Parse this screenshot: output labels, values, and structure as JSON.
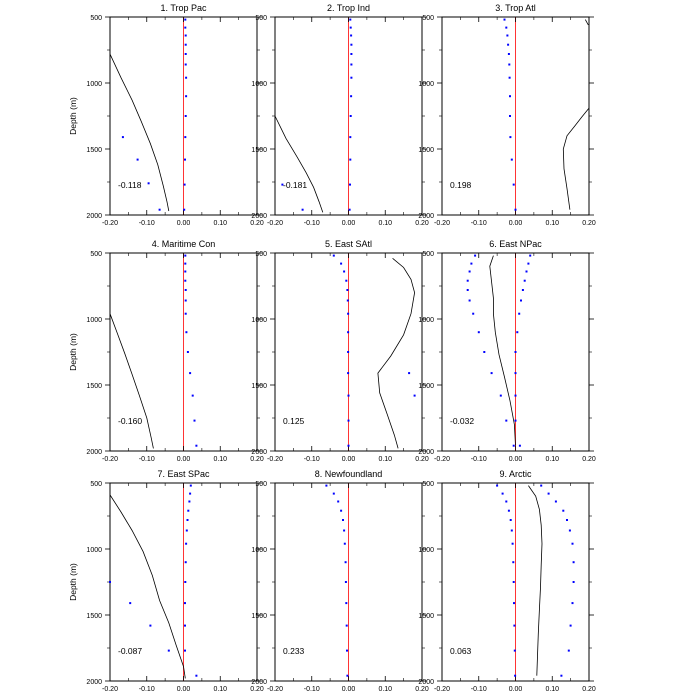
{
  "chart_data": {
    "type": "line",
    "ylabel": "Depth (m)",
    "xlim": [
      -0.2,
      0.2
    ],
    "ylim": [
      500,
      2000
    ],
    "y_inverted": true,
    "x_ticks": [
      "-0.20",
      "-0.10",
      "0.00",
      "0.10",
      "0.20"
    ],
    "y_ticks": [
      "500",
      "1000",
      "1500",
      "2000"
    ],
    "colors": {
      "zero_line": "#ff0000",
      "dots": "#0000ff",
      "curve": "#000000"
    },
    "panels": [
      {
        "title": "1. Trop Pac",
        "value": "-0.118",
        "curve": [
          [
            -0.2,
            780
          ],
          [
            -0.17,
            960
          ],
          [
            -0.14,
            1130
          ],
          [
            -0.115,
            1290
          ],
          [
            -0.09,
            1460
          ],
          [
            -0.07,
            1620
          ],
          [
            -0.055,
            1780
          ],
          [
            -0.045,
            1900
          ],
          [
            -0.04,
            1970
          ]
        ],
        "dots_near_zero": [
          [
            0.005,
            520
          ],
          [
            0.005,
            580
          ],
          [
            0.006,
            640
          ],
          [
            0.006,
            710
          ],
          [
            0.006,
            780
          ],
          [
            0.006,
            860
          ],
          [
            0.007,
            960
          ],
          [
            0.007,
            1100
          ],
          [
            0.006,
            1250
          ],
          [
            0.005,
            1410
          ],
          [
            0.004,
            1580
          ],
          [
            0.003,
            1770
          ],
          [
            0.002,
            1960
          ]
        ],
        "dots_scattered": [
          [
            -0.165,
            1410
          ],
          [
            -0.125,
            1580
          ],
          [
            -0.095,
            1760
          ],
          [
            -0.065,
            1960
          ]
        ]
      },
      {
        "title": "2. Trop Ind",
        "value": "-0.181",
        "curve": [
          [
            -0.2,
            1250
          ],
          [
            -0.17,
            1420
          ],
          [
            -0.14,
            1560
          ],
          [
            -0.115,
            1680
          ],
          [
            -0.095,
            1790
          ],
          [
            -0.08,
            1900
          ],
          [
            -0.07,
            1980
          ]
        ],
        "dots_near_zero": [
          [
            0.005,
            520
          ],
          [
            0.006,
            580
          ],
          [
            0.007,
            640
          ],
          [
            0.008,
            710
          ],
          [
            0.008,
            780
          ],
          [
            0.008,
            860
          ],
          [
            0.008,
            960
          ],
          [
            0.007,
            1100
          ],
          [
            0.006,
            1250
          ],
          [
            0.005,
            1410
          ],
          [
            0.005,
            1580
          ],
          [
            0.004,
            1770
          ],
          [
            0.003,
            1960
          ]
        ],
        "dots_scattered": [
          [
            -0.18,
            1770
          ],
          [
            -0.125,
            1960
          ]
        ]
      },
      {
        "title": "3. Trop Atl",
        "value": "0.198",
        "curve": [
          [
            0.2,
            1190
          ],
          [
            0.18,
            1260
          ],
          [
            0.16,
            1330
          ],
          [
            0.14,
            1400
          ],
          [
            0.13,
            1500
          ],
          [
            0.132,
            1650
          ],
          [
            0.14,
            1800
          ],
          [
            0.148,
            1960
          ]
        ],
        "curve2": [
          [
            0.19,
            520
          ],
          [
            0.198,
            560
          ]
        ],
        "dots_near_zero": [
          [
            -0.03,
            520
          ],
          [
            -0.025,
            580
          ],
          [
            -0.022,
            640
          ],
          [
            -0.02,
            710
          ],
          [
            -0.018,
            780
          ],
          [
            -0.017,
            860
          ],
          [
            -0.016,
            960
          ],
          [
            -0.015,
            1100
          ],
          [
            -0.015,
            1250
          ],
          [
            -0.014,
            1410
          ],
          [
            -0.01,
            1580
          ],
          [
            -0.005,
            1770
          ],
          [
            0.0,
            1960
          ]
        ],
        "dots_scattered": []
      },
      {
        "title": "4. Maritime Con",
        "value": "-0.160",
        "curve": [
          [
            -0.2,
            960
          ],
          [
            -0.18,
            1110
          ],
          [
            -0.16,
            1260
          ],
          [
            -0.14,
            1420
          ],
          [
            -0.12,
            1580
          ],
          [
            -0.1,
            1750
          ],
          [
            -0.088,
            1900
          ],
          [
            -0.082,
            1980
          ]
        ],
        "dots_near_zero": [
          [
            0.005,
            520
          ],
          [
            0.005,
            580
          ],
          [
            0.005,
            640
          ],
          [
            0.005,
            710
          ],
          [
            0.006,
            780
          ],
          [
            0.006,
            860
          ],
          [
            0.006,
            960
          ],
          [
            0.008,
            1100
          ],
          [
            0.012,
            1250
          ],
          [
            0.018,
            1410
          ],
          [
            0.025,
            1580
          ],
          [
            0.03,
            1770
          ],
          [
            0.035,
            1960
          ]
        ],
        "dots_scattered": []
      },
      {
        "title": "5. East SAtl",
        "value": "0.125",
        "curve": [
          [
            0.12,
            540
          ],
          [
            0.15,
            610
          ],
          [
            0.17,
            700
          ],
          [
            0.18,
            800
          ],
          [
            0.17,
            960
          ],
          [
            0.15,
            1120
          ],
          [
            0.115,
            1280
          ],
          [
            0.08,
            1410
          ],
          [
            0.085,
            1560
          ],
          [
            0.105,
            1720
          ],
          [
            0.125,
            1880
          ],
          [
            0.135,
            1980
          ]
        ],
        "dots_near_zero": [
          [
            -0.04,
            520
          ],
          [
            -0.02,
            580
          ],
          [
            -0.012,
            640
          ],
          [
            -0.006,
            710
          ],
          [
            -0.003,
            780
          ],
          [
            -0.002,
            860
          ],
          [
            -0.001,
            960
          ],
          [
            -0.001,
            1100
          ],
          [
            -0.001,
            1250
          ],
          [
            -0.001,
            1410
          ],
          [
            0.0,
            1580
          ],
          [
            0.0,
            1770
          ],
          [
            0.0,
            1960
          ]
        ],
        "dots_scattered": [
          [
            0.165,
            1410
          ],
          [
            0.18,
            1580
          ]
        ]
      },
      {
        "title": "6. East NPac",
        "value": "-0.032",
        "curve": [
          [
            -0.06,
            520
          ],
          [
            -0.07,
            600
          ],
          [
            -0.065,
            720
          ],
          [
            -0.06,
            840
          ],
          [
            -0.06,
            960
          ],
          [
            -0.055,
            1100
          ],
          [
            -0.045,
            1270
          ],
          [
            -0.03,
            1440
          ],
          [
            -0.015,
            1620
          ],
          [
            -0.003,
            1800
          ],
          [
            0.0,
            1960
          ]
        ],
        "dots_near_zero": [
          [
            0.04,
            520
          ],
          [
            0.035,
            580
          ],
          [
            0.03,
            640
          ],
          [
            0.025,
            710
          ],
          [
            0.02,
            780
          ],
          [
            0.015,
            860
          ],
          [
            0.01,
            960
          ],
          [
            0.005,
            1100
          ],
          [
            0.0,
            1250
          ],
          [
            0.0,
            1410
          ],
          [
            0.0,
            1580
          ],
          [
            0.0,
            1770
          ],
          [
            0.012,
            1960
          ]
        ],
        "dots_scattered": [
          [
            -0.11,
            520
          ],
          [
            -0.12,
            580
          ],
          [
            -0.125,
            640
          ],
          [
            -0.13,
            710
          ],
          [
            -0.13,
            780
          ],
          [
            -0.125,
            860
          ],
          [
            -0.115,
            960
          ],
          [
            -0.1,
            1100
          ],
          [
            -0.085,
            1250
          ],
          [
            -0.065,
            1410
          ],
          [
            -0.04,
            1580
          ],
          [
            -0.025,
            1770
          ],
          [
            -0.005,
            1960
          ]
        ]
      },
      {
        "title": "7. East SPac",
        "value": "-0.087",
        "curve": [
          [
            -0.2,
            590
          ],
          [
            -0.17,
            720
          ],
          [
            -0.14,
            860
          ],
          [
            -0.11,
            1020
          ],
          [
            -0.085,
            1200
          ],
          [
            -0.065,
            1390
          ],
          [
            -0.04,
            1560
          ],
          [
            -0.02,
            1730
          ],
          [
            0.0,
            1890
          ],
          [
            0.005,
            1980
          ]
        ],
        "dots_near_zero": [
          [
            0.02,
            520
          ],
          [
            0.018,
            580
          ],
          [
            0.016,
            640
          ],
          [
            0.013,
            710
          ],
          [
            0.011,
            780
          ],
          [
            0.009,
            860
          ],
          [
            0.007,
            960
          ],
          [
            0.006,
            1100
          ],
          [
            0.005,
            1250
          ],
          [
            0.004,
            1410
          ],
          [
            0.004,
            1580
          ],
          [
            0.004,
            1770
          ],
          [
            0.035,
            1960
          ]
        ],
        "dots_scattered": [
          [
            -0.2,
            1250
          ],
          [
            -0.145,
            1410
          ],
          [
            -0.09,
            1580
          ],
          [
            -0.04,
            1770
          ]
        ]
      },
      {
        "title": "8. Newfoundland",
        "value": "0.233",
        "curve": [],
        "dots_near_zero": [
          [
            -0.06,
            520
          ],
          [
            -0.04,
            580
          ],
          [
            -0.028,
            640
          ],
          [
            -0.02,
            710
          ],
          [
            -0.015,
            780
          ],
          [
            -0.012,
            860
          ],
          [
            -0.01,
            960
          ],
          [
            -0.008,
            1100
          ],
          [
            -0.007,
            1250
          ],
          [
            -0.006,
            1410
          ],
          [
            -0.005,
            1580
          ],
          [
            -0.004,
            1770
          ],
          [
            -0.003,
            1960
          ]
        ],
        "dots_scattered": []
      },
      {
        "title": "9. Arctic",
        "value": "0.063",
        "curve": [
          [
            0.035,
            520
          ],
          [
            0.055,
            600
          ],
          [
            0.065,
            700
          ],
          [
            0.07,
            820
          ],
          [
            0.072,
            960
          ],
          [
            0.07,
            1120
          ],
          [
            0.068,
            1290
          ],
          [
            0.065,
            1460
          ],
          [
            0.062,
            1640
          ],
          [
            0.06,
            1810
          ],
          [
            0.058,
            1960
          ]
        ],
        "dots_near_zero": [
          [
            -0.05,
            520
          ],
          [
            -0.035,
            580
          ],
          [
            -0.025,
            640
          ],
          [
            -0.018,
            710
          ],
          [
            -0.013,
            780
          ],
          [
            -0.01,
            860
          ],
          [
            -0.008,
            960
          ],
          [
            -0.006,
            1100
          ],
          [
            -0.005,
            1250
          ],
          [
            -0.004,
            1410
          ],
          [
            -0.003,
            1580
          ],
          [
            -0.002,
            1770
          ],
          [
            -0.001,
            1960
          ]
        ],
        "dots_scattered": [
          [
            0.07,
            520
          ],
          [
            0.09,
            580
          ],
          [
            0.11,
            640
          ],
          [
            0.13,
            710
          ],
          [
            0.14,
            780
          ],
          [
            0.148,
            860
          ],
          [
            0.155,
            960
          ],
          [
            0.158,
            1100
          ],
          [
            0.158,
            1250
          ],
          [
            0.155,
            1410
          ],
          [
            0.15,
            1580
          ],
          [
            0.145,
            1770
          ],
          [
            0.125,
            1960
          ]
        ]
      }
    ]
  }
}
